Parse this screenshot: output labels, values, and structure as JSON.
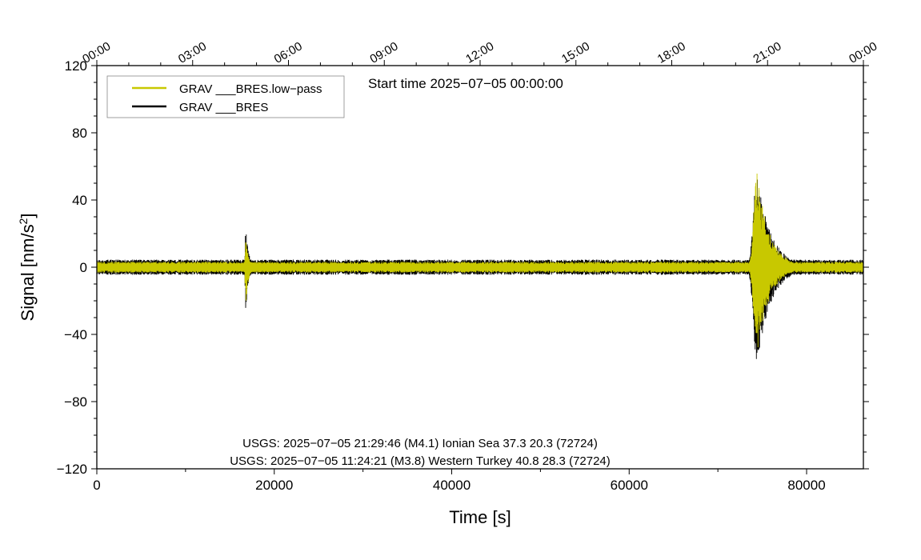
{
  "chart_data": {
    "type": "line",
    "xlabel": "Time [s]",
    "ylabel_main": "Signal [nm/s",
    "ylabel_sup": "2",
    "ylabel_close": "]",
    "xlim": [
      0,
      86400
    ],
    "ylim": [
      -120,
      120
    ],
    "x_ticks": [
      0,
      20000,
      40000,
      60000,
      80000
    ],
    "x_tick_labels": [
      "0",
      "20000",
      "40000",
      "60000",
      "80000"
    ],
    "y_ticks": [
      -120,
      -80,
      -40,
      0,
      40,
      80,
      120
    ],
    "y_tick_labels": [
      "−120",
      "−80",
      "−40",
      "0",
      "40",
      "80",
      "120"
    ],
    "top_ticks_s": [
      0,
      10800,
      21600,
      32400,
      43200,
      54000,
      64800,
      75600,
      86400
    ],
    "top_tick_labels": [
      "00:00",
      "03:00",
      "06:00",
      "09:00",
      "12:00",
      "15:00",
      "18:00",
      "21:00",
      "00:00"
    ],
    "start_time": "Start time 2025−07−05 00:00:00",
    "legend": {
      "placement": "top-left",
      "entries": [
        "GRAV ___BRES.low−pass",
        "GRAV ___BRES"
      ]
    },
    "series": [
      {
        "name": "GRAV ___BRES",
        "color": "#000000",
        "baseline_amplitude": 4.5,
        "events": [
          {
            "t": 16800,
            "peak_min": -26,
            "peak_max": 26,
            "width": 300
          },
          {
            "t": 74400,
            "peak_min": -58,
            "peak_max": 55,
            "width": 1600
          }
        ]
      },
      {
        "name": "GRAV ___BRES.low−pass",
        "color": "#c8c800",
        "baseline_amplitude": 3.2,
        "events": [
          {
            "t": 16800,
            "peak_min": -22,
            "peak_max": 18,
            "width": 300
          },
          {
            "t": 74400,
            "peak_min": -52,
            "peak_max": 57,
            "width": 1400
          }
        ]
      }
    ],
    "annotations": [
      "USGS: 2025−07−05 21:29:46 (M4.1) Ionian Sea 37.3 20.3 (72724)",
      "USGS: 2025−07−05 11:24:21 (M3.8) Western Turkey 40.8 28.3 (72724)"
    ],
    "grid": false
  }
}
